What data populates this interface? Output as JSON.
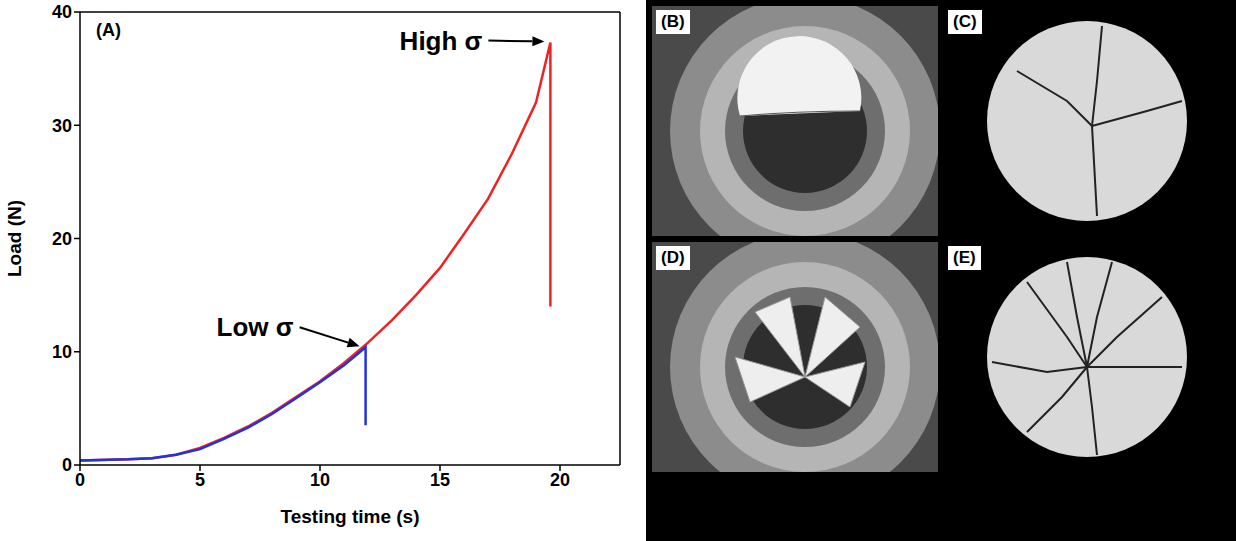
{
  "chart_data": {
    "type": "line",
    "panel": "(A)",
    "x_label": "Testing time (s)",
    "y_label": "Load (N)",
    "xlim": [
      0,
      22.5
    ],
    "xticks": [
      0,
      5,
      10,
      15,
      20
    ],
    "ylim": [
      0,
      40
    ],
    "yticks": [
      0,
      10,
      20,
      30,
      40
    ],
    "grid": false,
    "series": [
      {
        "color": "#ee2222",
        "x": [
          0,
          2,
          3,
          4,
          5,
          6,
          7,
          8,
          9,
          10,
          11,
          12,
          13,
          14,
          15,
          16,
          17,
          18,
          19,
          19.6,
          19.6
        ],
        "values": [
          0.4,
          0.5,
          0.6,
          0.9,
          1.5,
          2.4,
          3.4,
          4.6,
          6,
          7.4,
          9,
          10.8,
          12.8,
          15,
          17.4,
          20.4,
          23.5,
          27.5,
          32,
          37.3,
          14
        ]
      },
      {
        "color": "#2233dd",
        "x": [
          0,
          2,
          3,
          4,
          5,
          6,
          7,
          8,
          9,
          10,
          11,
          11.9,
          11.9
        ],
        "values": [
          0.4,
          0.5,
          0.6,
          0.9,
          1.4,
          2.3,
          3.3,
          4.5,
          5.9,
          7.3,
          8.8,
          10.4,
          3.5
        ]
      }
    ],
    "annotations": [
      {
        "text": "High σ",
        "x": 19.6,
        "y": 37.3
      },
      {
        "text": "Low σ",
        "x": 11.9,
        "y": 10.4
      }
    ]
  },
  "photos": {
    "panels": [
      {
        "label": "(B)"
      },
      {
        "label": "(C)"
      },
      {
        "label": "(D)"
      },
      {
        "label": "(E)"
      }
    ]
  }
}
